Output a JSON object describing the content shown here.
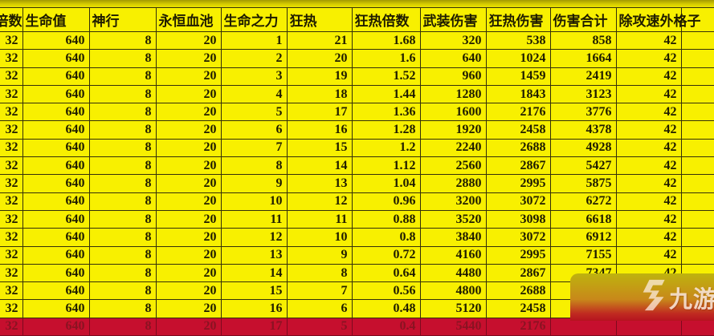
{
  "table": {
    "headers": [
      "倍数",
      "生命值",
      "神行",
      "永恒血池",
      "生命之力",
      "狂热",
      "狂热倍数",
      "武装伤害",
      "狂热伤害",
      "伤害合计",
      "除攻速外格子",
      ""
    ],
    "rows": [
      [
        "32",
        "640",
        "8",
        "20",
        "1",
        "21",
        "1.68",
        "320",
        "538",
        "858",
        "42",
        ""
      ],
      [
        "32",
        "640",
        "8",
        "20",
        "2",
        "20",
        "1.6",
        "640",
        "1024",
        "1664",
        "42",
        ""
      ],
      [
        "32",
        "640",
        "8",
        "20",
        "3",
        "19",
        "1.52",
        "960",
        "1459",
        "2419",
        "42",
        ""
      ],
      [
        "32",
        "640",
        "8",
        "20",
        "4",
        "18",
        "1.44",
        "1280",
        "1843",
        "3123",
        "42",
        ""
      ],
      [
        "32",
        "640",
        "8",
        "20",
        "5",
        "17",
        "1.36",
        "1600",
        "2176",
        "3776",
        "42",
        ""
      ],
      [
        "32",
        "640",
        "8",
        "20",
        "6",
        "16",
        "1.28",
        "1920",
        "2458",
        "4378",
        "42",
        ""
      ],
      [
        "32",
        "640",
        "8",
        "20",
        "7",
        "15",
        "1.2",
        "2240",
        "2688",
        "4928",
        "42",
        ""
      ],
      [
        "32",
        "640",
        "8",
        "20",
        "8",
        "14",
        "1.12",
        "2560",
        "2867",
        "5427",
        "42",
        ""
      ],
      [
        "32",
        "640",
        "8",
        "20",
        "9",
        "13",
        "1.04",
        "2880",
        "2995",
        "5875",
        "42",
        ""
      ],
      [
        "32",
        "640",
        "8",
        "20",
        "10",
        "12",
        "0.96",
        "3200",
        "3072",
        "6272",
        "42",
        ""
      ],
      [
        "32",
        "640",
        "8",
        "20",
        "11",
        "11",
        "0.88",
        "3520",
        "3098",
        "6618",
        "42",
        ""
      ],
      [
        "32",
        "640",
        "8",
        "20",
        "12",
        "10",
        "0.8",
        "3840",
        "3072",
        "6912",
        "42",
        ""
      ],
      [
        "32",
        "640",
        "8",
        "20",
        "13",
        "9",
        "0.72",
        "4160",
        "2995",
        "7155",
        "42",
        ""
      ],
      [
        "32",
        "640",
        "8",
        "20",
        "14",
        "8",
        "0.64",
        "4480",
        "2867",
        "7347",
        "42",
        ""
      ],
      [
        "32",
        "640",
        "8",
        "20",
        "15",
        "7",
        "0.56",
        "4800",
        "2688",
        "",
        "",
        ""
      ],
      [
        "32",
        "640",
        "8",
        "20",
        "16",
        "6",
        "0.48",
        "5120",
        "2458",
        "",
        "",
        ""
      ],
      [
        "32",
        "640",
        "8",
        "20",
        "17",
        "5",
        "0.4",
        "5440",
        "2176",
        "",
        "",
        ""
      ]
    ],
    "highlight_row_index": 16
  },
  "watermark": {
    "brand": "九游"
  },
  "colors": {
    "cell_yellow": "#f8f000",
    "grid_line": "#35300a",
    "text": "#1f1c00",
    "highlight_row_bg": "#c60f2e",
    "highlight_row_text": "#8a1322",
    "watermark_top": "#beb30e",
    "watermark_bottom": "#b5131f"
  }
}
